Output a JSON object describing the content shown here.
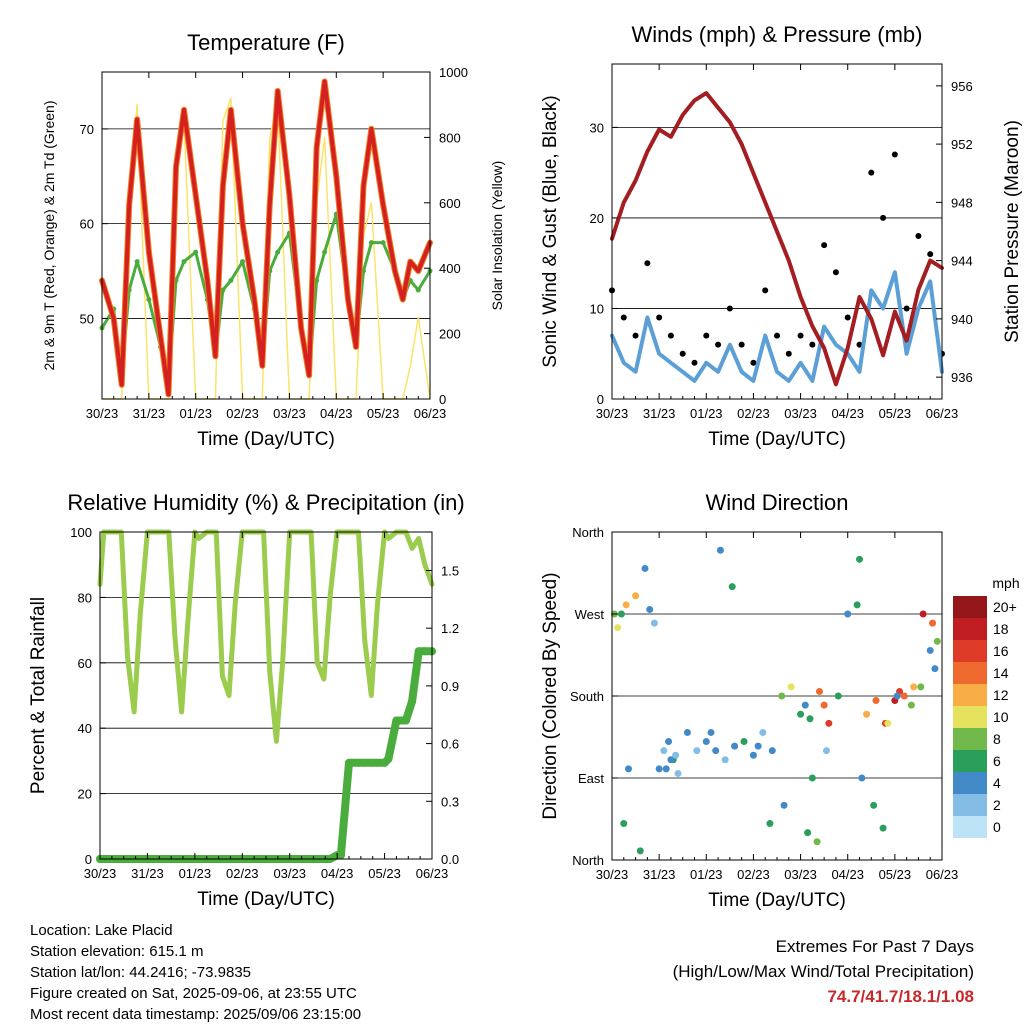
{
  "colors": {
    "temp": "#d42020",
    "temp9m": "#f07d1e",
    "dew": "#4aac3c",
    "solar": "#fbe36a",
    "pressure": "#a31d21",
    "gust": "#000000",
    "wind": "#5b9fd6",
    "rh": "#9ccc4e",
    "precip": "#4aac3c"
  },
  "x_ticks": [
    "30/23",
    "31/23",
    "01/23",
    "02/23",
    "03/23",
    "04/23",
    "05/23",
    "06/23"
  ],
  "chart_data": [
    {
      "id": "temperature",
      "type": "line",
      "title": "Temperature (F)",
      "xlabel": "Time (Day/UTC)",
      "ylabel": "2m & 9m T (Red, Orange) & 2m Td (Green)",
      "ylabel_right": "Solar Insolation (Yellow)",
      "ylim": [
        41.5,
        76
      ],
      "yticks": [
        50,
        60,
        70
      ],
      "ylim_right": [
        0,
        1000
      ],
      "yticks_right": [
        0,
        200,
        400,
        600,
        800,
        1000
      ],
      "grid": true,
      "x": [
        0,
        0.25,
        0.42,
        0.58,
        0.75,
        1.0,
        1.25,
        1.42,
        1.58,
        1.75,
        2.0,
        2.25,
        2.42,
        2.58,
        2.75,
        3.0,
        3.25,
        3.42,
        3.58,
        3.75,
        4.0,
        4.25,
        4.42,
        4.58,
        4.75,
        5.0,
        5.25,
        5.42,
        5.58,
        5.75,
        6.0,
        6.25,
        6.42,
        6.58,
        6.75,
        7.0
      ],
      "series": [
        {
          "id": "t2m",
          "values": [
            54,
            50,
            43,
            62,
            71,
            57,
            48,
            42,
            66,
            72,
            63,
            54,
            46,
            64,
            72,
            60,
            52,
            45,
            62,
            74,
            63,
            49,
            44,
            68,
            75,
            65,
            52,
            47,
            64,
            70,
            62,
            55,
            52,
            56,
            55,
            58
          ]
        },
        {
          "id": "td2m",
          "values": [
            49,
            51,
            44,
            53,
            56,
            52,
            47,
            43,
            54,
            56,
            57,
            52,
            46,
            53,
            54,
            56,
            51,
            45,
            55,
            57,
            59,
            49,
            44,
            54,
            57,
            61,
            52,
            47,
            55,
            58,
            58,
            55,
            52,
            54,
            53,
            55
          ]
        },
        {
          "id": "solar",
          "values": [
            0,
            0,
            0,
            600,
            900,
            0,
            0,
            0,
            700,
            850,
            0,
            0,
            0,
            850,
            920,
            0,
            0,
            0,
            800,
            900,
            0,
            0,
            0,
            600,
            800,
            0,
            0,
            0,
            500,
            600,
            0,
            0,
            0,
            100,
            250,
            0
          ]
        }
      ]
    },
    {
      "id": "winds",
      "type": "line",
      "title": "Winds (mph) & Pressure (mb)",
      "xlabel": "Time (Day/UTC)",
      "ylabel": "Sonic Wind & Gust (Blue, Black)",
      "ylabel_right": "Station Pressure (Maroon)",
      "ylim": [
        0,
        37
      ],
      "yticks": [
        0,
        10,
        20,
        30
      ],
      "ylim_right": [
        934.5,
        957.5
      ],
      "yticks_right": [
        936,
        940,
        944,
        948,
        952,
        956
      ],
      "grid": true,
      "x": [
        0,
        0.25,
        0.5,
        0.75,
        1.0,
        1.25,
        1.5,
        1.75,
        2.0,
        2.25,
        2.5,
        2.75,
        3.0,
        3.25,
        3.5,
        3.75,
        4.0,
        4.25,
        4.5,
        4.75,
        5.0,
        5.25,
        5.5,
        5.75,
        6.0,
        6.25,
        6.5,
        6.75,
        7.0
      ],
      "series": [
        {
          "id": "pressure",
          "values": [
            945.5,
            948,
            949.5,
            951.5,
            953,
            952.5,
            954,
            955,
            955.5,
            954.5,
            953.5,
            952,
            950,
            948,
            946,
            944,
            941.5,
            939.5,
            938,
            935.5,
            938,
            941.5,
            940,
            937.5,
            940.5,
            938.5,
            942,
            944,
            943.5
          ]
        },
        {
          "id": "wind",
          "values": [
            7,
            4,
            3,
            9,
            5,
            4,
            3,
            2,
            4,
            3,
            6,
            3,
            2,
            7,
            3,
            2,
            4,
            2,
            8,
            6,
            5,
            3,
            12,
            10,
            14,
            5,
            10,
            13,
            3
          ]
        },
        {
          "id": "gust",
          "values": [
            12,
            9,
            7,
            15,
            9,
            7,
            5,
            4,
            7,
            6,
            10,
            6,
            4,
            12,
            7,
            5,
            7,
            6,
            17,
            14,
            9,
            6,
            25,
            20,
            27,
            10,
            18,
            16,
            5
          ]
        }
      ]
    },
    {
      "id": "humidity",
      "type": "line",
      "title": "Relative Humidity (%) & Precipitation (in)",
      "xlabel": "Time (Day/UTC)",
      "ylabel": "Percent & Total Rainfall",
      "ylim": [
        0,
        100
      ],
      "yticks": [
        0,
        20,
        40,
        60,
        80,
        100
      ],
      "ylim_right": [
        0,
        1.7
      ],
      "yticks_right": [
        "0.0",
        "0.3",
        "0.6",
        "0.9",
        "1.2",
        "1.5"
      ],
      "grid": true,
      "x": [
        0,
        0.08,
        0.25,
        0.45,
        0.58,
        0.72,
        0.85,
        1.0,
        1.08,
        1.25,
        1.45,
        1.58,
        1.72,
        1.85,
        2.0,
        2.08,
        2.25,
        2.45,
        2.58,
        2.72,
        2.85,
        3.0,
        3.08,
        3.25,
        3.45,
        3.58,
        3.72,
        3.85,
        4.0,
        4.08,
        4.25,
        4.45,
        4.58,
        4.72,
        4.85,
        5.0,
        5.08,
        5.25,
        5.45,
        5.58,
        5.72,
        5.85,
        6.0,
        6.08,
        6.25,
        6.45,
        6.58,
        6.72,
        6.85,
        7.0
      ],
      "series": [
        {
          "id": "rh",
          "values": [
            84,
            100,
            100,
            100,
            62,
            45,
            75,
            100,
            100,
            100,
            100,
            68,
            45,
            72,
            100,
            98,
            100,
            100,
            56,
            50,
            78,
            100,
            100,
            100,
            100,
            57,
            36,
            60,
            100,
            100,
            100,
            100,
            60,
            55,
            80,
            100,
            100,
            100,
            100,
            67,
            50,
            78,
            100,
            98,
            100,
            100,
            95,
            98,
            90,
            84
          ]
        },
        {
          "id": "precip",
          "values": [
            0,
            0,
            0,
            0,
            0,
            0,
            0,
            0,
            0,
            0,
            0,
            0,
            0,
            0,
            0,
            0,
            0,
            0,
            0,
            0,
            0,
            0,
            0,
            0,
            0,
            0,
            0,
            0,
            0,
            0,
            0,
            0,
            0,
            0,
            0,
            0.02,
            0.02,
            0.5,
            0.5,
            0.5,
            0.5,
            0.5,
            0.5,
            0.52,
            0.72,
            0.72,
            0.82,
            1.08,
            1.08,
            1.08
          ]
        }
      ]
    },
    {
      "id": "direction",
      "type": "scatter",
      "title": "Wind Direction",
      "xlabel": "Time (Day/UTC)",
      "ylabel": "Direction (Colored By Speed)",
      "ylim": [
        0,
        360
      ],
      "ytick_labels": [
        "North",
        "East",
        "South",
        "West",
        "North"
      ],
      "yticks": [
        0,
        90,
        180,
        270,
        360
      ],
      "grid": true,
      "colorbar": {
        "title": "mph",
        "labels": [
          "0",
          "2",
          "4",
          "6",
          "8",
          "10",
          "12",
          "14",
          "16",
          "18",
          "20+"
        ],
        "colors": [
          "#bde3f7",
          "#83bde6",
          "#4289c7",
          "#2a9f5c",
          "#70b94a",
          "#e5e35e",
          "#f9ad47",
          "#ef6a2e",
          "#dd3a28",
          "#bf1d22",
          "#931719"
        ]
      },
      "x": [
        0.05,
        0.12,
        0.2,
        0.3,
        0.5,
        0.7,
        0.8,
        0.9,
        1.0,
        1.1,
        1.2,
        1.3,
        1.4,
        1.6,
        1.8,
        2.0,
        2.2,
        2.4,
        2.6,
        2.8,
        3.0,
        3.2,
        3.4,
        3.6,
        3.8,
        4.0,
        4.1,
        4.2,
        4.4,
        4.5,
        4.6,
        4.8,
        5.0,
        5.2,
        5.4,
        5.6,
        5.8,
        6.0,
        6.1,
        6.2,
        6.4,
        6.6,
        6.8,
        6.9,
        0.25,
        0.6,
        1.15,
        1.25,
        2.3,
        2.55,
        3.35,
        3.65,
        4.15,
        4.35,
        4.55,
        5.3,
        5.55,
        5.75,
        5.85,
        6.35,
        6.55,
        6.75,
        0.35,
        1.35,
        2.1,
        3.1,
        4.25,
        5.25,
        6.05,
        6.85
      ],
      "values": [
        270,
        255,
        270,
        280,
        290,
        320,
        275,
        260,
        100,
        120,
        130,
        110,
        95,
        140,
        120,
        130,
        120,
        110,
        125,
        130,
        115,
        140,
        120,
        180,
        190,
        160,
        170,
        155,
        185,
        170,
        150,
        180,
        270,
        280,
        160,
        175,
        150,
        175,
        185,
        180,
        190,
        270,
        260,
        240,
        40,
        10,
        100,
        110,
        340,
        300,
        40,
        60,
        30,
        20,
        120,
        90,
        60,
        35,
        150,
        170,
        190,
        230,
        100,
        115,
        140,
        125,
        90,
        330,
        180,
        210
      ],
      "speeds": [
        8,
        10,
        6,
        12,
        11,
        4,
        4,
        2,
        3,
        2,
        4,
        5,
        2,
        3,
        2,
        4,
        3,
        2,
        3,
        5,
        4,
        2,
        4,
        8,
        9,
        5,
        4,
        6,
        13,
        14,
        15,
        6,
        4,
        5,
        12,
        13,
        16,
        18,
        16,
        14,
        12,
        17,
        13,
        8,
        6,
        5,
        4,
        3,
        4,
        5,
        6,
        4,
        5,
        7,
        2,
        3,
        6,
        5,
        9,
        8,
        7,
        4,
        3,
        2,
        3,
        4,
        5,
        6,
        4,
        3
      ]
    }
  ],
  "meta": {
    "location": "Location: Lake Placid",
    "elevation": "Station elevation: 615.1 m",
    "latlon": "Station lat/lon: 44.2416; -73.9835",
    "created": "Figure created on Sat, 2025-09-06, at 23:55 UTC",
    "recent": "Most recent data timestamp: 2025/09/06 23:15:00"
  },
  "extremes": {
    "title": "Extremes For Past 7 Days",
    "subtitle": "(High/Low/Max Wind/Total Precipitation)",
    "values": "74.7/41.7/18.1/1.08"
  }
}
